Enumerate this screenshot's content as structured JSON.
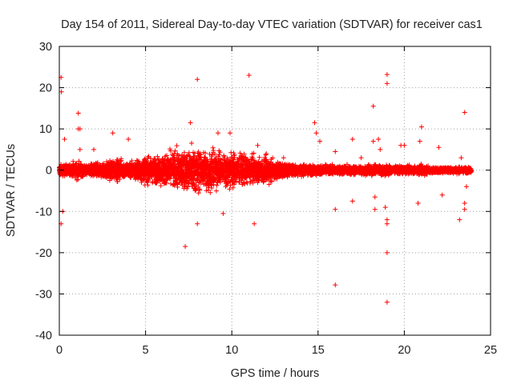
{
  "chart_data": {
    "type": "scatter",
    "title": "Day 154 of 2011, Sidereal Day-to-day VTEC variation (SDTVAR) for receiver cas1",
    "xlabel": "GPS time / hours",
    "ylabel": "SDTVAR / TECUs",
    "xlim": [
      0,
      25
    ],
    "ylim": [
      -40,
      30
    ],
    "xticks": [
      0,
      5,
      10,
      15,
      20,
      25
    ],
    "yticks": [
      -40,
      -30,
      -20,
      -10,
      0,
      10,
      20,
      30
    ],
    "grid": true,
    "marker": "+",
    "color": "#ff0000",
    "series": [
      {
        "name": "SDTVAR",
        "envelope_hours": [
          0,
          0.5,
          1,
          1.5,
          2,
          2.5,
          3,
          3.5,
          4,
          4.5,
          5,
          5.5,
          6,
          6.5,
          7,
          7.5,
          8,
          8.5,
          9,
          9.5,
          10,
          10.5,
          11,
          11.5,
          12,
          12.5,
          13,
          13.5,
          14,
          14.5,
          15,
          15.5,
          16,
          16.5,
          17,
          17.5,
          18,
          18.5,
          19,
          19.5,
          20,
          20.5,
          21,
          21.5,
          22,
          22.5,
          23,
          23.5,
          23.9
        ],
        "envelope_amplitude": [
          2.5,
          2,
          3,
          2,
          2.5,
          3,
          4,
          4,
          3,
          4,
          5,
          5,
          6,
          7,
          8,
          8,
          9,
          8,
          7,
          6,
          7,
          6,
          5,
          5,
          5,
          4,
          3,
          2.5,
          2,
          2,
          2,
          1.8,
          1.8,
          1.8,
          1.8,
          1.8,
          1.8,
          2,
          2,
          1.5,
          1.5,
          1.5,
          2,
          1.3,
          1.2,
          1.2,
          1.2,
          1.2,
          1.2
        ],
        "outliers": [
          {
            "x": 0.1,
            "y": 22.5
          },
          {
            "x": 0.12,
            "y": 19
          },
          {
            "x": 0.1,
            "y": -13
          },
          {
            "x": 0.2,
            "y": -10
          },
          {
            "x": 0.3,
            "y": 7.5
          },
          {
            "x": 1.1,
            "y": 13.8
          },
          {
            "x": 1.1,
            "y": 10
          },
          {
            "x": 1.2,
            "y": 10
          },
          {
            "x": 1.2,
            "y": 5
          },
          {
            "x": 2.0,
            "y": 5
          },
          {
            "x": 3.1,
            "y": 9
          },
          {
            "x": 4.0,
            "y": 7.5
          },
          {
            "x": 7.3,
            "y": -18.5
          },
          {
            "x": 7.6,
            "y": 11.5
          },
          {
            "x": 8.0,
            "y": 22
          },
          {
            "x": 8.0,
            "y": -13
          },
          {
            "x": 9.2,
            "y": 9
          },
          {
            "x": 9.5,
            "y": -10.5
          },
          {
            "x": 9.9,
            "y": 9
          },
          {
            "x": 11.0,
            "y": 23
          },
          {
            "x": 11.3,
            "y": -13
          },
          {
            "x": 11.5,
            "y": 6
          },
          {
            "x": 12.0,
            "y": 4
          },
          {
            "x": 13.0,
            "y": 3
          },
          {
            "x": 14.8,
            "y": 11.5
          },
          {
            "x": 14.9,
            "y": 9
          },
          {
            "x": 15.1,
            "y": 7
          },
          {
            "x": 16.0,
            "y": -27.8
          },
          {
            "x": 16.0,
            "y": -9.5
          },
          {
            "x": 16.0,
            "y": 4.5
          },
          {
            "x": 17.0,
            "y": 7.5
          },
          {
            "x": 17.0,
            "y": -7.5
          },
          {
            "x": 17.5,
            "y": 3
          },
          {
            "x": 18.2,
            "y": 15.5
          },
          {
            "x": 18.2,
            "y": 7
          },
          {
            "x": 18.3,
            "y": -6.5
          },
          {
            "x": 18.3,
            "y": -9.5
          },
          {
            "x": 18.5,
            "y": 7.5
          },
          {
            "x": 18.6,
            "y": 5
          },
          {
            "x": 19.0,
            "y": 23.2
          },
          {
            "x": 19.0,
            "y": 21
          },
          {
            "x": 19.0,
            "y": -12
          },
          {
            "x": 19.0,
            "y": -13
          },
          {
            "x": 19.0,
            "y": -20
          },
          {
            "x": 19.0,
            "y": -32
          },
          {
            "x": 18.9,
            "y": -9
          },
          {
            "x": 19.8,
            "y": 6
          },
          {
            "x": 20.0,
            "y": 6
          },
          {
            "x": 20.8,
            "y": -8
          },
          {
            "x": 21.0,
            "y": 10.5
          },
          {
            "x": 20.9,
            "y": 7
          },
          {
            "x": 22.0,
            "y": 5.5
          },
          {
            "x": 22.2,
            "y": -6
          },
          {
            "x": 23.2,
            "y": -12
          },
          {
            "x": 23.5,
            "y": -9.5
          },
          {
            "x": 23.5,
            "y": -8
          },
          {
            "x": 23.5,
            "y": 14
          },
          {
            "x": 23.6,
            "y": -4
          },
          {
            "x": 23.3,
            "y": 3
          }
        ]
      }
    ]
  }
}
